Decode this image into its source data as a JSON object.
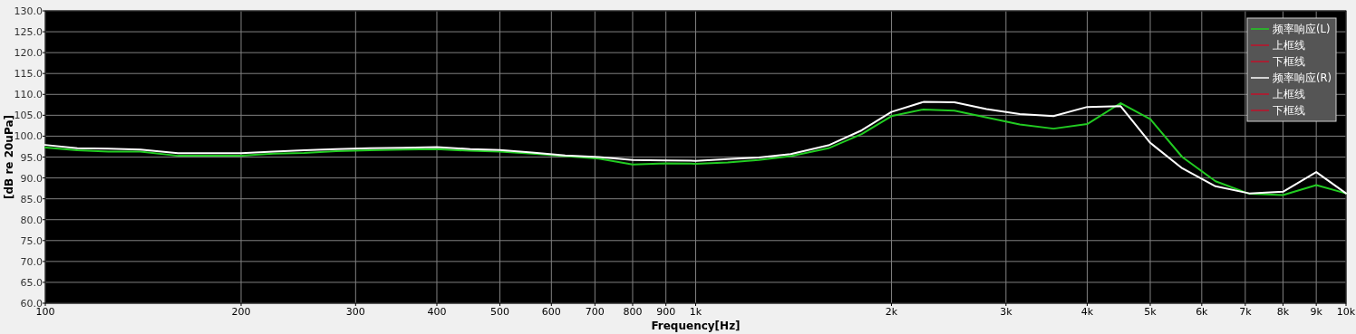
{
  "chart_data": {
    "type": "line",
    "xlabel": "Frequency[Hz]",
    "ylabel": "[dB re 20uPa]",
    "x": [
      100,
      112,
      125,
      140,
      160,
      180,
      200,
      224,
      250,
      280,
      315,
      355,
      400,
      450,
      500,
      560,
      630,
      710,
      800,
      900,
      1000,
      1120,
      1250,
      1400,
      1600,
      1800,
      2000,
      2240,
      2500,
      2800,
      3150,
      3550,
      4000,
      4500,
      5000,
      5600,
      6300,
      7100,
      8000,
      9000,
      10000
    ],
    "series": [
      {
        "name": "频率响应(L)",
        "color": "#22cc22",
        "values": [
          97.3,
          96.6,
          96.3,
          96.3,
          95.3,
          95.3,
          95.3,
          95.8,
          96.0,
          96.4,
          96.6,
          96.8,
          96.9,
          96.5,
          96.3,
          95.8,
          95.2,
          94.6,
          93.2,
          93.5,
          93.4,
          93.7,
          94.3,
          95.2,
          97.1,
          100.5,
          104.8,
          106.4,
          106.1,
          104.5,
          102.8,
          101.8,
          102.9,
          107.9,
          104.1,
          95.0,
          89.2,
          86.2,
          85.9,
          88.3,
          86.3
        ]
      },
      {
        "name": "上框线",
        "color": "#c0102a",
        "values": [
          null,
          null,
          null,
          null,
          null,
          null,
          null,
          null,
          null,
          null,
          null,
          null,
          null,
          null,
          null,
          null,
          null,
          null,
          null,
          null,
          null,
          null,
          null,
          null,
          null,
          null,
          null,
          null,
          null,
          null,
          null,
          null,
          null,
          null,
          null,
          null,
          null,
          null,
          null,
          null,
          null
        ]
      },
      {
        "name": "下框线",
        "color": "#c0102a",
        "values": [
          null,
          null,
          null,
          null,
          null,
          null,
          null,
          null,
          null,
          null,
          null,
          null,
          null,
          null,
          null,
          null,
          null,
          null,
          null,
          null,
          null,
          null,
          null,
          null,
          null,
          null,
          null,
          null,
          null,
          null,
          null,
          null,
          null,
          null,
          null,
          null,
          null,
          null,
          null,
          null,
          null
        ]
      },
      {
        "name": "频率响应(R)",
        "color": "#ffffff",
        "values": [
          97.9,
          97.1,
          97.0,
          96.8,
          95.9,
          95.9,
          95.9,
          96.3,
          96.6,
          96.9,
          97.1,
          97.2,
          97.4,
          96.9,
          96.7,
          96.1,
          95.4,
          95.0,
          94.3,
          94.2,
          94.1,
          94.5,
          94.9,
          95.7,
          97.8,
          101.4,
          105.8,
          108.2,
          108.1,
          106.5,
          105.3,
          104.8,
          107.0,
          107.2,
          98.4,
          92.3,
          88.0,
          86.3,
          86.7,
          91.4,
          86.3
        ]
      },
      {
        "name": "上框线",
        "color": "#c0102a",
        "values": [
          null,
          null,
          null,
          null,
          null,
          null,
          null,
          null,
          null,
          null,
          null,
          null,
          null,
          null,
          null,
          null,
          null,
          null,
          null,
          null,
          null,
          null,
          null,
          null,
          null,
          null,
          null,
          null,
          null,
          null,
          null,
          null,
          null,
          null,
          null,
          null,
          null,
          null,
          null,
          null,
          null
        ]
      },
      {
        "name": "下框线",
        "color": "#c0102a",
        "values": [
          null,
          null,
          null,
          null,
          null,
          null,
          null,
          null,
          null,
          null,
          null,
          null,
          null,
          null,
          null,
          null,
          null,
          null,
          null,
          null,
          null,
          null,
          null,
          null,
          null,
          null,
          null,
          null,
          null,
          null,
          null,
          null,
          null,
          null,
          null,
          null,
          null,
          null,
          null,
          null,
          null
        ]
      }
    ],
    "log": "x",
    "xlim": [
      100,
      10000
    ],
    "ylim": [
      60,
      130
    ],
    "xticks": [
      100,
      200,
      300,
      400,
      500,
      600,
      700,
      800,
      900,
      {
        "value": 1000,
        "label": "1k"
      },
      {
        "value": 2000,
        "label": "2k"
      },
      {
        "value": 3000,
        "label": "3k"
      },
      {
        "value": 4000,
        "label": "4k"
      },
      {
        "value": 5000,
        "label": "5k"
      },
      {
        "value": 6000,
        "label": "6k"
      },
      {
        "value": 7000,
        "label": "7k"
      },
      {
        "value": 8000,
        "label": "8k"
      },
      {
        "value": 9000,
        "label": "9k"
      },
      {
        "value": 10000,
        "label": "10k"
      }
    ],
    "yticks": [
      {
        "value": 60,
        "label": "60.0"
      },
      {
        "value": 65,
        "label": "65.0"
      },
      {
        "value": 70,
        "label": "70.0"
      },
      {
        "value": 75,
        "label": "75.0"
      },
      {
        "value": 80,
        "label": "80.0"
      },
      {
        "value": 85,
        "label": "85.0"
      },
      {
        "value": 90,
        "label": "90.0"
      },
      {
        "value": 95,
        "label": "95.0"
      },
      {
        "value": 100,
        "label": "100.0"
      },
      {
        "value": 105,
        "label": "105.0"
      },
      {
        "value": 110,
        "label": "110.0"
      },
      {
        "value": 115,
        "label": "115.0"
      },
      {
        "value": 120,
        "label": "120.0"
      },
      {
        "value": 125,
        "label": "125.0"
      },
      {
        "value": 130,
        "label": "130.0"
      }
    ],
    "grid": true,
    "legend": "top right",
    "marker": "none",
    "line_style": "solid"
  }
}
